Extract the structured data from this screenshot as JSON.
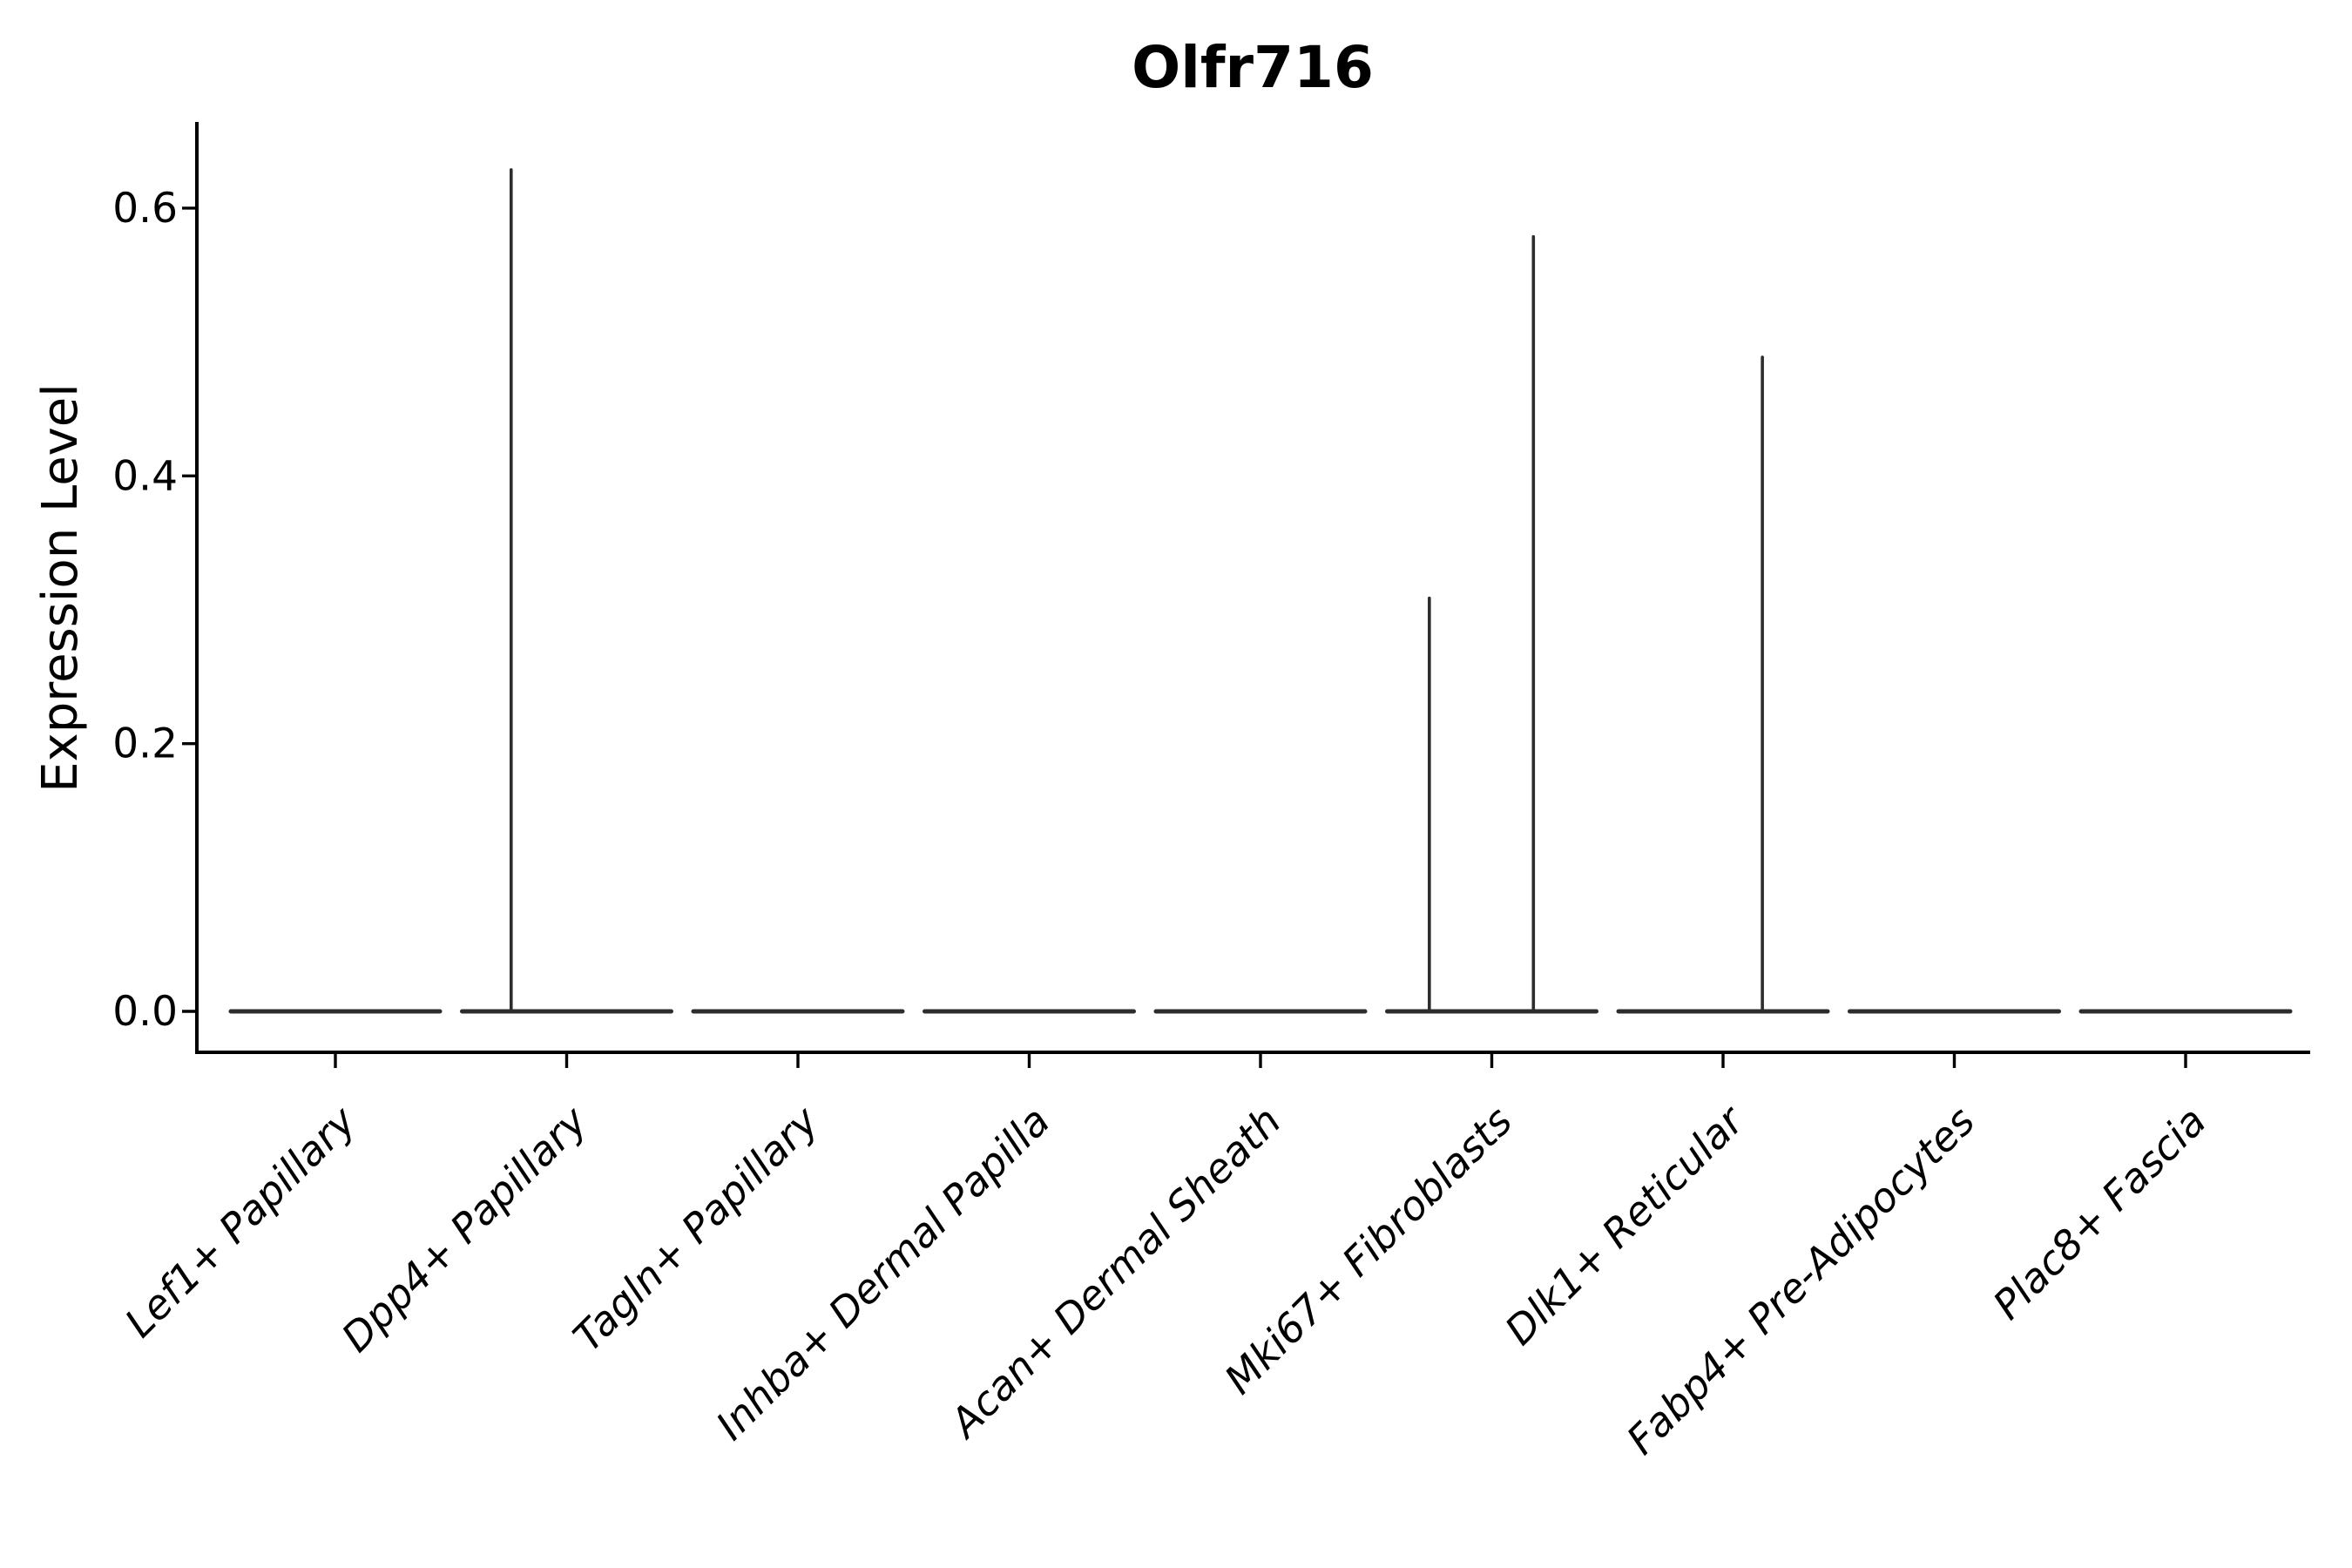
{
  "figure": {
    "title": "Olfr716",
    "y_axis_label": "Expression Level"
  },
  "chart_data": {
    "type": "violin",
    "title": "Olfr716",
    "xlabel": "",
    "ylabel": "Expression Level",
    "grid": false,
    "legend": null,
    "ylim": [
      -0.03,
      0.66
    ],
    "yticks": [
      0.0,
      0.2,
      0.4,
      0.6
    ],
    "categories": [
      "Lef1+ Papillary",
      "Dpp4+ Papillary",
      "Tagln+ Papillary",
      "Inhba+ Dermal Papilla",
      "Acan+ Dermal Sheath",
      "Mki67+ Fibroblasts",
      "Dlk1+ Reticular",
      "Fabp4+ Pre-Adipocytes",
      "Plac8+ Fascia"
    ],
    "violins": [
      {
        "category": "Lef1+ Papillary",
        "baseline": 0.0,
        "spikes": []
      },
      {
        "category": "Dpp4+ Papillary",
        "baseline": 0.0,
        "spikes": [
          {
            "max": 0.63,
            "offset_frac": -0.24
          }
        ]
      },
      {
        "category": "Tagln+ Papillary",
        "baseline": 0.0,
        "spikes": []
      },
      {
        "category": "Inhba+ Dermal Papilla",
        "baseline": 0.0,
        "spikes": []
      },
      {
        "category": "Acan+ Dermal Sheath",
        "baseline": 0.0,
        "spikes": []
      },
      {
        "category": "Mki67+ Fibroblasts",
        "baseline": 0.0,
        "spikes": [
          {
            "max": 0.31,
            "offset_frac": -0.27
          },
          {
            "max": 0.58,
            "offset_frac": 0.18
          }
        ]
      },
      {
        "category": "Dlk1+ Reticular",
        "baseline": 0.0,
        "spikes": [
          {
            "max": 0.49,
            "offset_frac": 0.17
          }
        ]
      },
      {
        "category": "Fabp4+ Pre-Adipocytes",
        "baseline": 0.0,
        "spikes": []
      },
      {
        "category": "Plac8+ Fascia",
        "baseline": 0.0,
        "spikes": []
      }
    ],
    "violin_color": "#2d2d2d",
    "axis_color": "#000000"
  }
}
